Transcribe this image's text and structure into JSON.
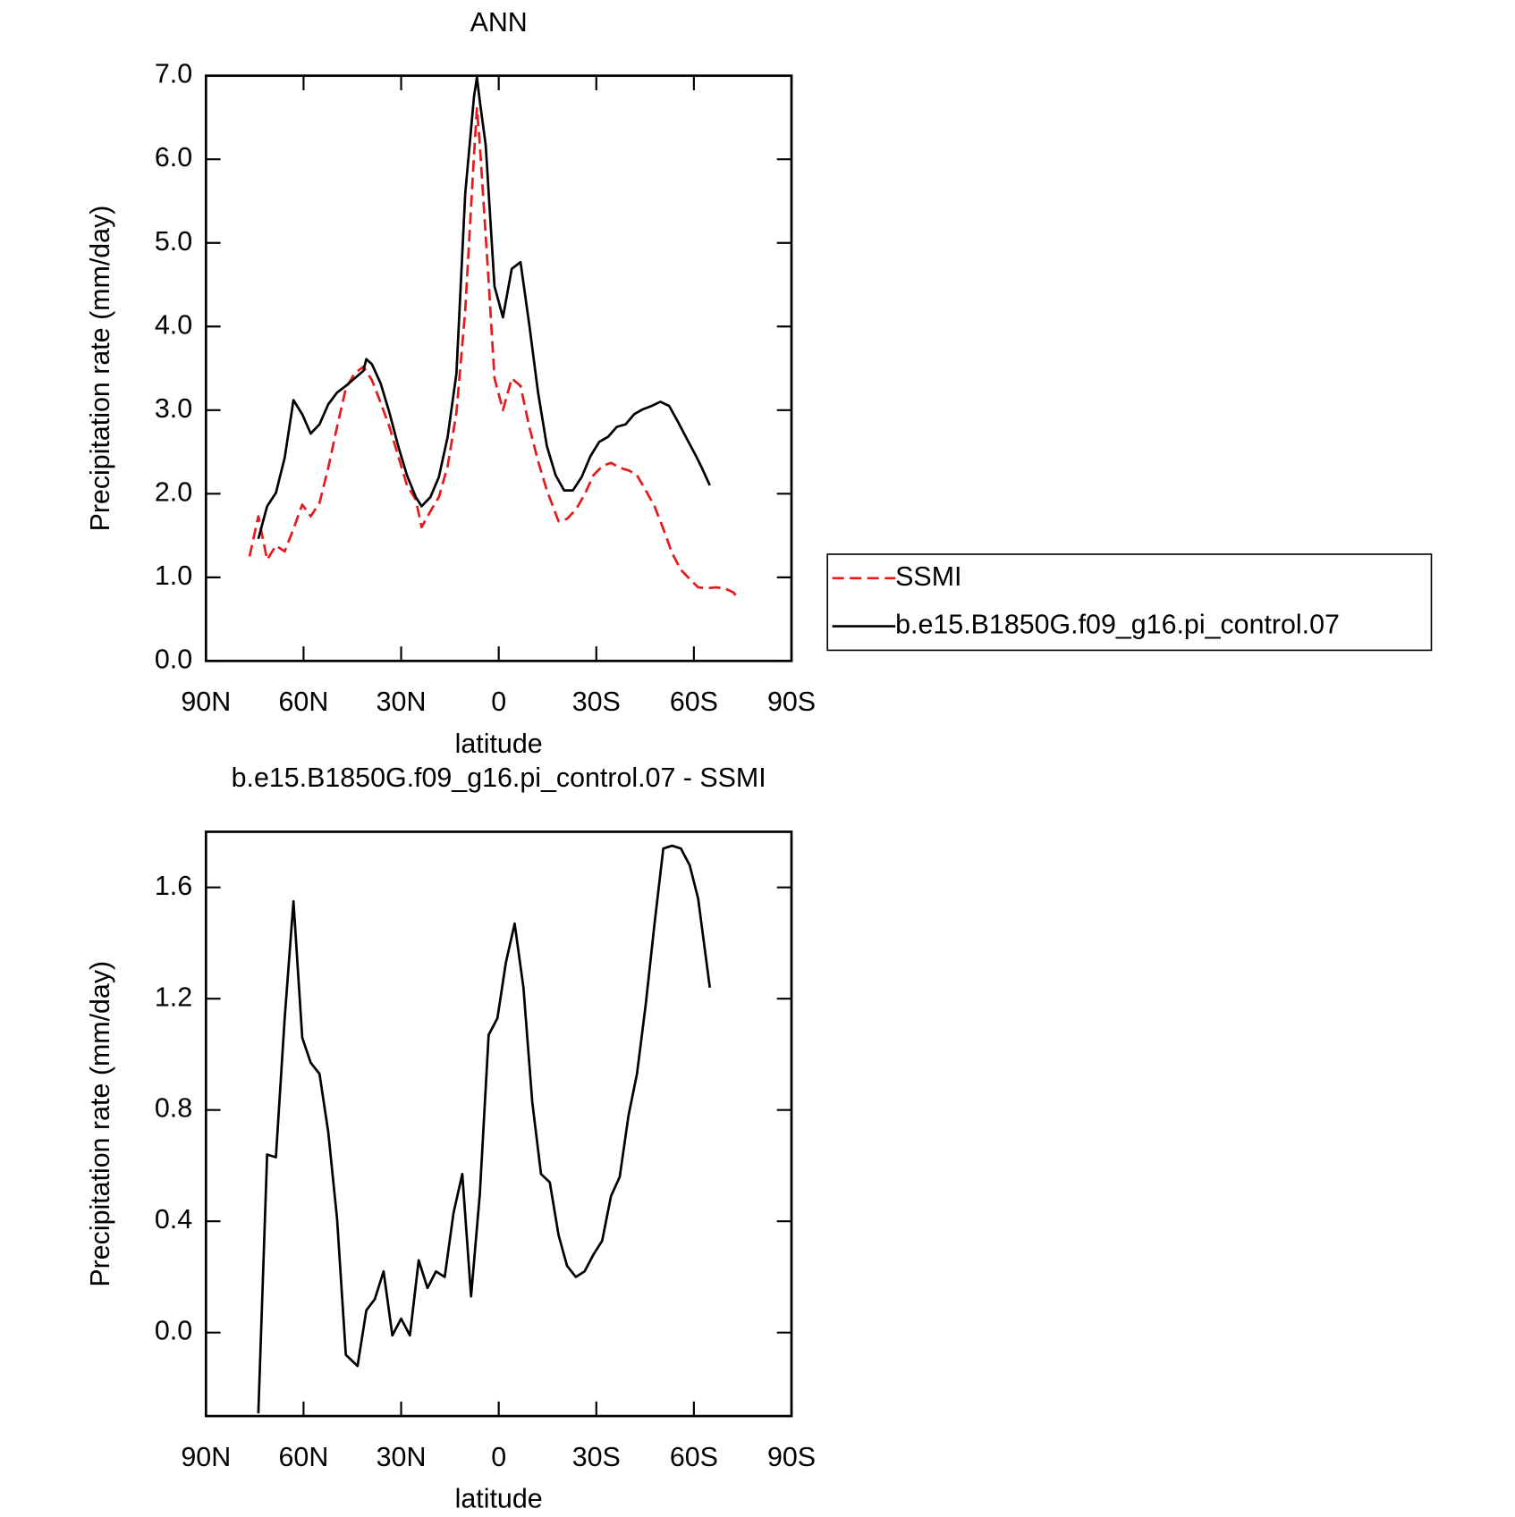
{
  "chart_data": [
    {
      "type": "line",
      "title": "ANN",
      "xlabel": "latitude",
      "ylabel": "Precipitation rate (mm/day)",
      "xlim": [
        90,
        -90
      ],
      "xticks": [
        {
          "value": 90,
          "label": "90N"
        },
        {
          "value": 60,
          "label": "60N"
        },
        {
          "value": 30,
          "label": "30N"
        },
        0,
        {
          "value": -30,
          "label": "30S"
        },
        {
          "value": -60,
          "label": "60S"
        },
        {
          "value": -90,
          "label": "90S"
        }
      ],
      "ylim": [
        0,
        7
      ],
      "yticks": [
        {
          "value": 0,
          "label": "0.0"
        },
        {
          "value": 1,
          "label": "1.0"
        },
        {
          "value": 2,
          "label": "2.0"
        },
        {
          "value": 3,
          "label": "3.0"
        },
        {
          "value": 4,
          "label": "4.0"
        },
        {
          "value": 5,
          "label": "5.0"
        },
        {
          "value": 6,
          "label": "6.0"
        },
        {
          "value": 7,
          "label": "7.0"
        }
      ],
      "legend": "right",
      "series": [
        {
          "name": "SSMI",
          "color": "#e41a1c",
          "line_style": "dashed",
          "x": [
            76.6,
            73.9,
            71.2,
            68.5,
            65.8,
            63.1,
            60.4,
            57.8,
            55.1,
            52.4,
            49.7,
            47.0,
            44.3,
            41.6,
            39.0,
            36.3,
            33.6,
            30.9,
            28.2,
            25.5,
            23.7,
            21.0,
            18.4,
            15.7,
            13.0,
            10.3,
            7.6,
            6.7,
            5.8,
            3.1,
            1.3,
            -1.3,
            -4.0,
            -6.7,
            -9.4,
            -12.1,
            -14.8,
            -18.4,
            -21.0,
            -23.7,
            -26.4,
            -29.1,
            -31.8,
            -34.5,
            -37.2,
            -39.9,
            -42.5,
            -45.2,
            -47.9,
            -50.6,
            -53.3,
            -56.0,
            -58.7,
            -61.3,
            -64.0,
            -66.7,
            -69.4,
            -72.1,
            -73.9
          ],
          "values": [
            1.25,
            1.73,
            1.21,
            1.38,
            1.31,
            1.58,
            1.87,
            1.73,
            1.89,
            2.31,
            2.8,
            3.26,
            3.44,
            3.52,
            3.36,
            3.09,
            2.8,
            2.45,
            2.1,
            1.93,
            1.6,
            1.79,
            1.96,
            2.33,
            2.97,
            4.19,
            6.05,
            6.61,
            6.17,
            4.54,
            3.38,
            3.0,
            3.38,
            3.29,
            2.8,
            2.39,
            2.04,
            1.67,
            1.7,
            1.81,
            1.99,
            2.22,
            2.33,
            2.37,
            2.31,
            2.28,
            2.22,
            2.04,
            1.85,
            1.58,
            1.29,
            1.09,
            0.98,
            0.88,
            0.87,
            0.88,
            0.87,
            0.82,
            0.74
          ]
        },
        {
          "name": "b.e15.B1850G.f09_g16.pi_control.07",
          "color": "#000000",
          "line_style": "solid",
          "x": [
            73.9,
            71.2,
            68.5,
            65.8,
            63.1,
            60.4,
            57.8,
            55.1,
            52.4,
            49.7,
            47.0,
            44.3,
            41.6,
            40.7,
            39.0,
            36.3,
            33.6,
            30.9,
            28.2,
            25.5,
            23.7,
            21.0,
            18.4,
            15.7,
            13.0,
            10.3,
            7.6,
            6.7,
            5.8,
            4.0,
            1.3,
            -1.3,
            -4.0,
            -6.7,
            -9.4,
            -12.1,
            -14.8,
            -17.5,
            -20.1,
            -22.8,
            -25.5,
            -28.2,
            -30.9,
            -33.6,
            -36.3,
            -39.0,
            -41.6,
            -44.3,
            -47.0,
            -49.7,
            -52.4,
            -55.1,
            -57.8,
            -60.4,
            -62.2,
            -64.9
          ],
          "values": [
            1.46,
            1.85,
            2.01,
            2.43,
            3.12,
            2.95,
            2.72,
            2.83,
            3.07,
            3.21,
            3.29,
            3.38,
            3.47,
            3.61,
            3.55,
            3.32,
            2.97,
            2.57,
            2.22,
            1.96,
            1.85,
            1.96,
            2.2,
            2.68,
            3.44,
            5.59,
            6.75,
            6.98,
            6.69,
            6.17,
            4.48,
            4.11,
            4.69,
            4.77,
            4.02,
            3.21,
            2.57,
            2.22,
            2.04,
            2.04,
            2.2,
            2.45,
            2.62,
            2.68,
            2.8,
            2.83,
            2.95,
            3.01,
            3.05,
            3.1,
            3.05,
            2.86,
            2.66,
            2.47,
            2.33,
            2.1
          ]
        }
      ]
    },
    {
      "type": "line",
      "title": "b.e15.B1850G.f09_g16.pi_control.07 - SSMI",
      "xlabel": "latitude",
      "ylabel": "Precipitation rate (mm/day)",
      "xlim": [
        90,
        -90
      ],
      "xticks": [
        {
          "value": 90,
          "label": "90N"
        },
        {
          "value": 60,
          "label": "60N"
        },
        {
          "value": 30,
          "label": "30N"
        },
        0,
        {
          "value": -30,
          "label": "30S"
        },
        {
          "value": -60,
          "label": "60S"
        },
        {
          "value": -90,
          "label": "90S"
        }
      ],
      "ylim": [
        -0.3,
        1.8
      ],
      "yticks": [
        {
          "value": 0,
          "label": "0.0"
        },
        0.4,
        0.8,
        1.2,
        1.6
      ],
      "color": "#000000",
      "line_style": "solid",
      "x": [
        73.9,
        71.2,
        68.5,
        65.8,
        63.1,
        60.4,
        57.8,
        55.1,
        52.4,
        49.7,
        47.0,
        43.4,
        40.7,
        38.1,
        35.4,
        32.7,
        30.0,
        27.3,
        24.6,
        21.9,
        19.3,
        16.6,
        13.9,
        11.2,
        8.5,
        5.8,
        3.1,
        0.4,
        -2.2,
        -4.9,
        -7.6,
        -10.3,
        -13.0,
        -15.7,
        -18.4,
        -21.0,
        -23.7,
        -26.4,
        -29.1,
        -31.8,
        -34.5,
        -37.2,
        -39.9,
        -42.5,
        -45.2,
        -47.9,
        -50.6,
        -53.3,
        -56.0,
        -58.7,
        -61.3,
        -64.9
      ],
      "values": [
        -0.29,
        0.64,
        0.63,
        1.13,
        1.55,
        1.06,
        0.97,
        0.93,
        0.72,
        0.41,
        -0.08,
        -0.12,
        0.08,
        0.12,
        0.22,
        -0.01,
        0.05,
        -0.01,
        0.26,
        0.16,
        0.22,
        0.2,
        0.43,
        0.57,
        0.13,
        0.5,
        1.07,
        1.13,
        1.33,
        1.47,
        1.24,
        0.83,
        0.57,
        0.54,
        0.35,
        0.24,
        0.2,
        0.22,
        0.28,
        0.33,
        0.49,
        0.56,
        0.78,
        0.93,
        1.18,
        1.47,
        1.74,
        1.75,
        1.74,
        1.68,
        1.56,
        1.24
      ]
    }
  ]
}
